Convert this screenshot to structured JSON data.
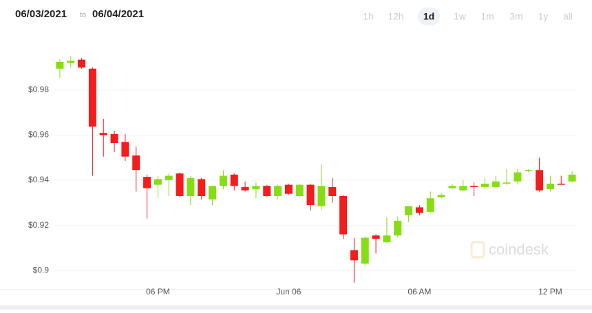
{
  "header": {
    "date_from": "06/03/2021",
    "separator": "to",
    "date_to": "06/04/2021",
    "ranges": [
      "1h",
      "12h",
      "1d",
      "1w",
      "1m",
      "3m",
      "1y",
      "all"
    ],
    "selected_range": "1d"
  },
  "watermark": "coindesk",
  "chart_data": {
    "type": "candlestick",
    "categories": [
      null,
      null,
      null,
      null,
      null,
      null,
      null,
      null,
      null,
      "06 PM",
      null,
      null,
      null,
      null,
      null,
      null,
      null,
      null,
      null,
      null,
      null,
      "Jun 06",
      null,
      null,
      null,
      null,
      null,
      null,
      null,
      null,
      null,
      null,
      null,
      "06 AM",
      null,
      null,
      null,
      null,
      null,
      null,
      null,
      null,
      null,
      null,
      null,
      "12 PM",
      null,
      null
    ],
    "open": [
      0.9895,
      0.992,
      0.9935,
      0.9895,
      0.961,
      0.9605,
      0.957,
      0.951,
      0.9415,
      0.938,
      0.94,
      0.943,
      0.933,
      0.9405,
      0.9315,
      0.9375,
      0.9425,
      0.937,
      0.936,
      0.9375,
      0.933,
      0.938,
      0.933,
      0.938,
      0.9285,
      0.937,
      0.933,
      0.909,
      0.903,
      0.9155,
      0.9125,
      0.9155,
      0.9245,
      0.928,
      0.926,
      0.9325,
      0.9365,
      0.9355,
      0.9375,
      0.937,
      0.937,
      0.9385,
      0.9395,
      0.944,
      0.9445,
      0.936,
      0.9385,
      0.9395
    ],
    "high": [
      0.9937,
      0.995,
      0.9942,
      0.99,
      0.9672,
      0.962,
      0.9605,
      0.955,
      0.9425,
      0.942,
      0.943,
      0.9435,
      0.942,
      0.941,
      0.9375,
      0.9445,
      0.943,
      0.9395,
      0.939,
      0.938,
      0.938,
      0.9385,
      0.9385,
      0.9385,
      0.947,
      0.941,
      0.9335,
      0.9145,
      0.915,
      0.916,
      0.9235,
      0.924,
      0.9285,
      0.929,
      0.935,
      0.9345,
      0.9385,
      0.94,
      0.939,
      0.941,
      0.942,
      0.945,
      0.945,
      0.945,
      0.95,
      0.942,
      0.942,
      0.944
    ],
    "low": [
      0.9855,
      0.99,
      0.9895,
      0.942,
      0.9505,
      0.9525,
      0.9485,
      0.935,
      0.923,
      0.932,
      0.933,
      0.9325,
      0.929,
      0.9315,
      0.929,
      0.936,
      0.9355,
      0.935,
      0.932,
      0.9325,
      0.9315,
      0.9335,
      0.9325,
      0.9265,
      0.927,
      0.93,
      0.914,
      0.8945,
      0.902,
      0.9075,
      0.912,
      0.9145,
      0.9215,
      0.9245,
      0.9255,
      0.932,
      0.936,
      0.935,
      0.933,
      0.936,
      0.9365,
      0.938,
      0.9385,
      0.9435,
      0.935,
      0.935,
      0.938,
      0.939
    ],
    "close": [
      0.9925,
      0.993,
      0.99,
      0.9638,
      0.96,
      0.9565,
      0.9505,
      0.9445,
      0.9365,
      0.9405,
      0.942,
      0.933,
      0.941,
      0.933,
      0.9375,
      0.942,
      0.9375,
      0.9355,
      0.9375,
      0.933,
      0.9375,
      0.934,
      0.938,
      0.929,
      0.9375,
      0.933,
      0.916,
      0.9045,
      0.9145,
      0.914,
      0.9155,
      0.922,
      0.9285,
      0.9255,
      0.932,
      0.9335,
      0.9375,
      0.9375,
      0.937,
      0.9385,
      0.9395,
      0.939,
      0.9435,
      0.9445,
      0.9355,
      0.9385,
      0.938,
      0.9425
    ],
    "up_color": "#86de12",
    "down_color": "#f41c1c",
    "ylim": [
      0.8918,
      1.0047
    ],
    "yticks": [
      {
        "value": 0.9,
        "label": "$0.9"
      },
      {
        "value": 0.92,
        "label": "$0.92"
      },
      {
        "value": 0.94,
        "label": "$0.94"
      },
      {
        "value": 0.96,
        "label": "$0.96"
      },
      {
        "value": 0.98,
        "label": "$0.98"
      }
    ],
    "grid": true
  }
}
